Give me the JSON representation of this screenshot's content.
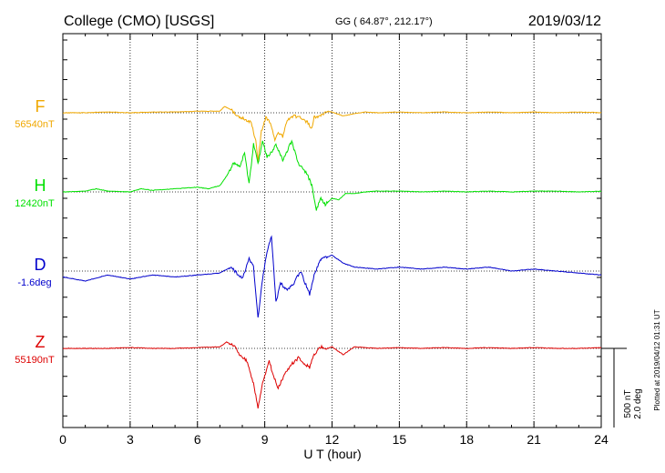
{
  "header": {
    "station": "College (CMO)  [USGS]",
    "coords": "GG ( 64.87°, 212.17°)",
    "date": "2019/03/12"
  },
  "colors": {
    "F": "#f0a800",
    "H": "#00e000",
    "D": "#0000cc",
    "Z": "#dd0000"
  },
  "chart_data": {
    "type": "line",
    "xlabel": "U T (hour)",
    "xlim": [
      0,
      24
    ],
    "xticks": [
      0,
      3,
      6,
      9,
      12,
      15,
      18,
      21,
      24
    ],
    "scale_bar": {
      "nT": "500 nT",
      "deg": "2.0 deg"
    },
    "plotted_note": "Plotted at 2019/04/12 01:31 UT",
    "series": [
      {
        "name": "F",
        "baseline_label": "56540nT",
        "color": "#f0a800",
        "points": [
          [
            0,
            0
          ],
          [
            1,
            0
          ],
          [
            2,
            5
          ],
          [
            3,
            0
          ],
          [
            4,
            5
          ],
          [
            5,
            5
          ],
          [
            6,
            10
          ],
          [
            7,
            10
          ],
          [
            7.2,
            40
          ],
          [
            7.5,
            20
          ],
          [
            7.8,
            -20
          ],
          [
            8.1,
            -40
          ],
          [
            8.4,
            -60
          ],
          [
            8.6,
            -180
          ],
          [
            8.7,
            -300
          ],
          [
            8.85,
            -120
          ],
          [
            9.05,
            -30
          ],
          [
            9.25,
            -60
          ],
          [
            9.45,
            -180
          ],
          [
            9.6,
            -120
          ],
          [
            9.8,
            -150
          ],
          [
            10.0,
            -50
          ],
          [
            10.3,
            -20
          ],
          [
            10.6,
            -30
          ],
          [
            10.9,
            -60
          ],
          [
            11.1,
            -100
          ],
          [
            11.2,
            -30
          ],
          [
            11.5,
            -20
          ],
          [
            11.8,
            10
          ],
          [
            12,
            5
          ],
          [
            12.5,
            -20
          ],
          [
            13,
            -5
          ],
          [
            13.5,
            5
          ],
          [
            14,
            0
          ],
          [
            15,
            5
          ],
          [
            16,
            0
          ],
          [
            17,
            5
          ],
          [
            18,
            0
          ],
          [
            19,
            5
          ],
          [
            20,
            0
          ],
          [
            21,
            5
          ],
          [
            22,
            0
          ],
          [
            23,
            5
          ],
          [
            24,
            0
          ]
        ]
      },
      {
        "name": "H",
        "baseline_label": "12420nT",
        "color": "#00e000",
        "points": [
          [
            0,
            0
          ],
          [
            1,
            5
          ],
          [
            1.5,
            20
          ],
          [
            2,
            5
          ],
          [
            3,
            0
          ],
          [
            3.5,
            20
          ],
          [
            4,
            10
          ],
          [
            5,
            20
          ],
          [
            6,
            30
          ],
          [
            6.5,
            20
          ],
          [
            7,
            40
          ],
          [
            7.3,
            100
          ],
          [
            7.6,
            180
          ],
          [
            7.9,
            160
          ],
          [
            8.1,
            250
          ],
          [
            8.3,
            50
          ],
          [
            8.5,
            300
          ],
          [
            8.7,
            180
          ],
          [
            8.9,
            320
          ],
          [
            9.1,
            220
          ],
          [
            9.3,
            250
          ],
          [
            9.5,
            300
          ],
          [
            9.8,
            200
          ],
          [
            10.2,
            320
          ],
          [
            10.5,
            180
          ],
          [
            10.9,
            110
          ],
          [
            11.1,
            40
          ],
          [
            11.3,
            -110
          ],
          [
            11.5,
            -40
          ],
          [
            11.7,
            -80
          ],
          [
            12,
            -40
          ],
          [
            12.3,
            -50
          ],
          [
            12.6,
            -10
          ],
          [
            13,
            -10
          ],
          [
            13.5,
            0
          ],
          [
            14,
            5
          ],
          [
            15,
            5
          ],
          [
            16,
            0
          ],
          [
            17,
            5
          ],
          [
            18,
            0
          ],
          [
            19,
            5
          ],
          [
            20,
            0
          ],
          [
            21,
            5
          ],
          [
            22,
            5
          ],
          [
            23,
            0
          ],
          [
            24,
            5
          ]
        ]
      },
      {
        "name": "D",
        "baseline_label": "-1.6deg",
        "color": "#0000cc",
        "points": [
          [
            0,
            -0.15
          ],
          [
            1,
            -0.25
          ],
          [
            2,
            -0.1
          ],
          [
            3,
            -0.2
          ],
          [
            4,
            -0.1
          ],
          [
            5,
            -0.15
          ],
          [
            6,
            -0.1
          ],
          [
            7,
            -0.05
          ],
          [
            7.5,
            0.1
          ],
          [
            8,
            -0.2
          ],
          [
            8.3,
            0.3
          ],
          [
            8.5,
            0.1
          ],
          [
            8.7,
            -1.2
          ],
          [
            8.9,
            -0.2
          ],
          [
            9.1,
            0.5
          ],
          [
            9.3,
            0.9
          ],
          [
            9.5,
            -0.8
          ],
          [
            9.7,
            -0.3
          ],
          [
            10,
            -0.5
          ],
          [
            10.3,
            -0.3
          ],
          [
            10.6,
            0
          ],
          [
            11,
            -0.6
          ],
          [
            11.2,
            -0.1
          ],
          [
            11.5,
            0.3
          ],
          [
            12,
            0.4
          ],
          [
            12.5,
            0.2
          ],
          [
            13,
            0.1
          ],
          [
            14,
            0.05
          ],
          [
            15,
            0.1
          ],
          [
            16,
            0.05
          ],
          [
            17,
            0.1
          ],
          [
            18,
            0.05
          ],
          [
            19,
            0.1
          ],
          [
            20,
            0
          ],
          [
            21,
            0.05
          ],
          [
            22,
            0
          ],
          [
            23,
            -0.05
          ],
          [
            24,
            -0.1
          ]
        ]
      },
      {
        "name": "Z",
        "baseline_label": "55190nT",
        "color": "#dd0000",
        "points": [
          [
            0,
            0
          ],
          [
            1,
            0
          ],
          [
            2,
            0
          ],
          [
            3,
            5
          ],
          [
            4,
            0
          ],
          [
            5,
            0
          ],
          [
            6,
            5
          ],
          [
            7,
            10
          ],
          [
            7.3,
            40
          ],
          [
            7.6,
            20
          ],
          [
            7.9,
            -40
          ],
          [
            8.2,
            -80
          ],
          [
            8.5,
            -220
          ],
          [
            8.7,
            -380
          ],
          [
            8.9,
            -220
          ],
          [
            9.2,
            -80
          ],
          [
            9.4,
            -180
          ],
          [
            9.6,
            -250
          ],
          [
            9.9,
            -160
          ],
          [
            10.2,
            -100
          ],
          [
            10.5,
            -60
          ],
          [
            10.8,
            -100
          ],
          [
            11.0,
            -120
          ],
          [
            11.2,
            -40
          ],
          [
            11.5,
            10
          ],
          [
            11.8,
            0
          ],
          [
            12,
            10
          ],
          [
            12.5,
            -40
          ],
          [
            13,
            10
          ],
          [
            13.5,
            5
          ],
          [
            14,
            0
          ],
          [
            15,
            5
          ],
          [
            16,
            0
          ],
          [
            17,
            5
          ],
          [
            18,
            0
          ],
          [
            19,
            5
          ],
          [
            20,
            0
          ],
          [
            21,
            5
          ],
          [
            22,
            0
          ],
          [
            23,
            0
          ],
          [
            24,
            5
          ]
        ]
      }
    ]
  }
}
